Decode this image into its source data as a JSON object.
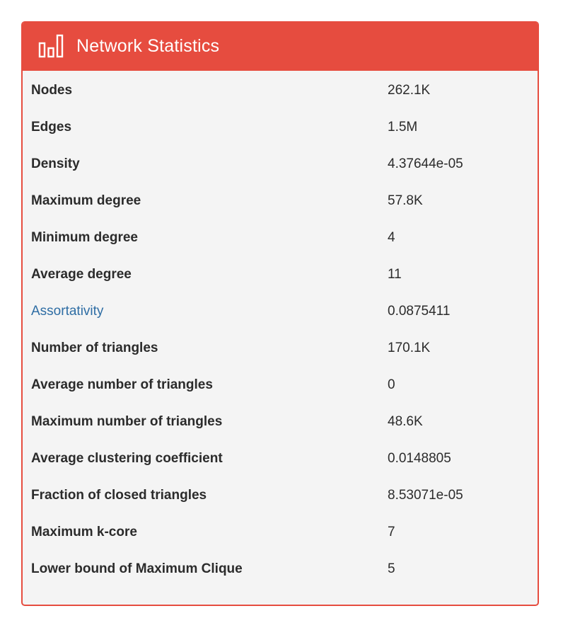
{
  "header": {
    "title": "Network Statistics",
    "icon": "bar-chart-icon"
  },
  "colors": {
    "accent": "#e64c3f",
    "link": "#2e6da4",
    "panel_bg": "#f4f4f4"
  },
  "stats": [
    {
      "label": "Nodes",
      "value": "262.1K",
      "link": false
    },
    {
      "label": "Edges",
      "value": "1.5M",
      "link": false
    },
    {
      "label": "Density",
      "value": "4.37644e-05",
      "link": false
    },
    {
      "label": "Maximum degree",
      "value": "57.8K",
      "link": false
    },
    {
      "label": "Minimum degree",
      "value": "4",
      "link": false
    },
    {
      "label": "Average degree",
      "value": "11",
      "link": false
    },
    {
      "label": "Assortativity",
      "value": "0.0875411",
      "link": true
    },
    {
      "label": "Number of triangles",
      "value": "170.1K",
      "link": false
    },
    {
      "label": "Average number of triangles",
      "value": "0",
      "link": false
    },
    {
      "label": "Maximum number of triangles",
      "value": "48.6K",
      "link": false
    },
    {
      "label": "Average clustering coefficient",
      "value": "0.0148805",
      "link": false
    },
    {
      "label": "Fraction of closed triangles",
      "value": "8.53071e-05",
      "link": false
    },
    {
      "label": "Maximum k-core",
      "value": "7",
      "link": false
    },
    {
      "label": "Lower bound of Maximum Clique",
      "value": "5",
      "link": false
    }
  ]
}
